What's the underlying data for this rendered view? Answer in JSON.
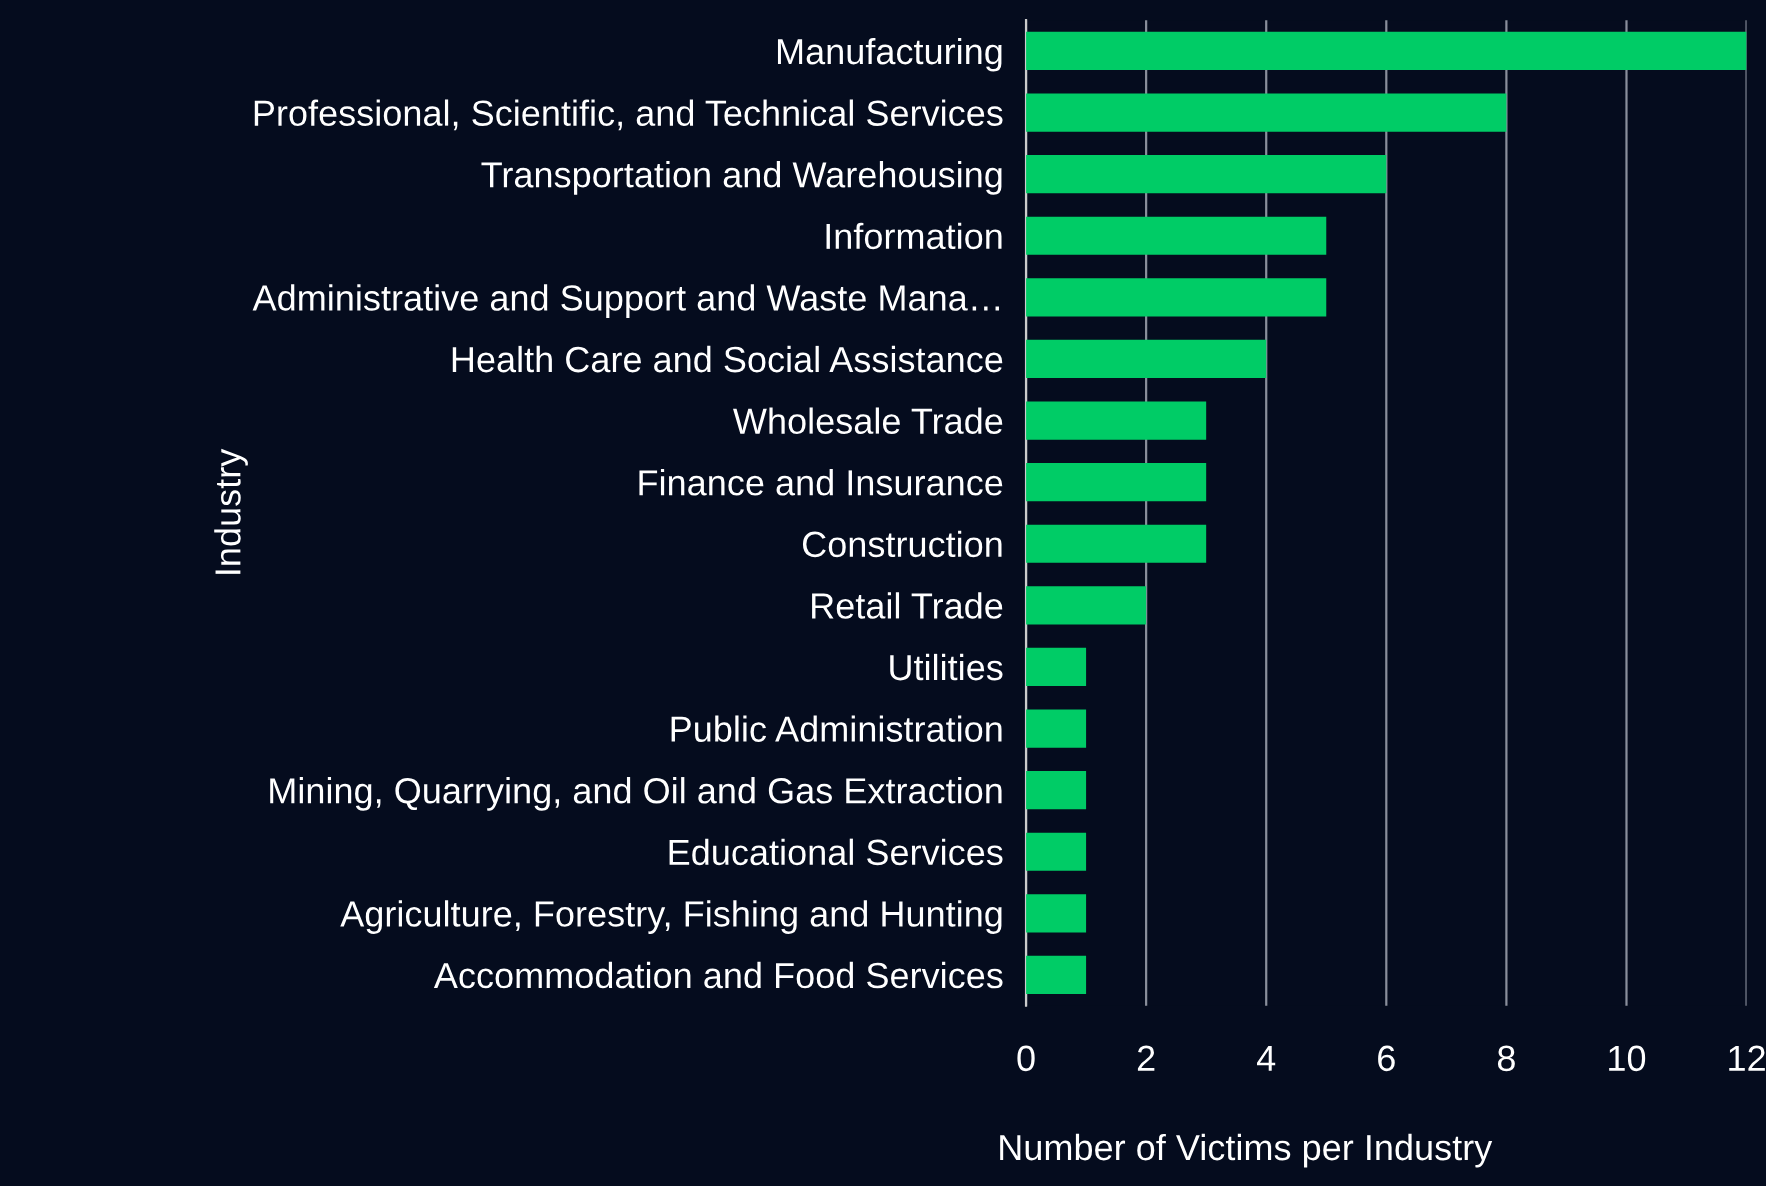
{
  "chart_data": {
    "type": "bar",
    "orientation": "horizontal",
    "xlabel": "Number of Victims per Industry",
    "ylabel": "Industry",
    "categories": [
      "Manufacturing",
      "Professional, Scientific, and Technical Services",
      "Transportation and Warehousing",
      "Information",
      "Administrative and Support and Waste Mana…",
      "Health Care and Social Assistance",
      "Wholesale Trade",
      "Finance and Insurance",
      "Construction",
      "Retail Trade",
      "Utilities",
      "Public Administration",
      "Mining, Quarrying, and Oil and Gas Extraction",
      "Educational Services",
      "Agriculture, Forestry, Fishing and Hunting",
      "Accommodation and Food Services"
    ],
    "values": [
      12,
      8,
      6,
      5,
      5,
      4,
      3,
      3,
      3,
      2,
      1,
      1,
      1,
      1,
      1,
      1
    ],
    "color": "#00cc66",
    "xlim": [
      0,
      12
    ],
    "xticks": [
      0,
      2,
      4,
      6,
      8,
      10,
      12
    ],
    "grid": "x",
    "legend": false
  }
}
